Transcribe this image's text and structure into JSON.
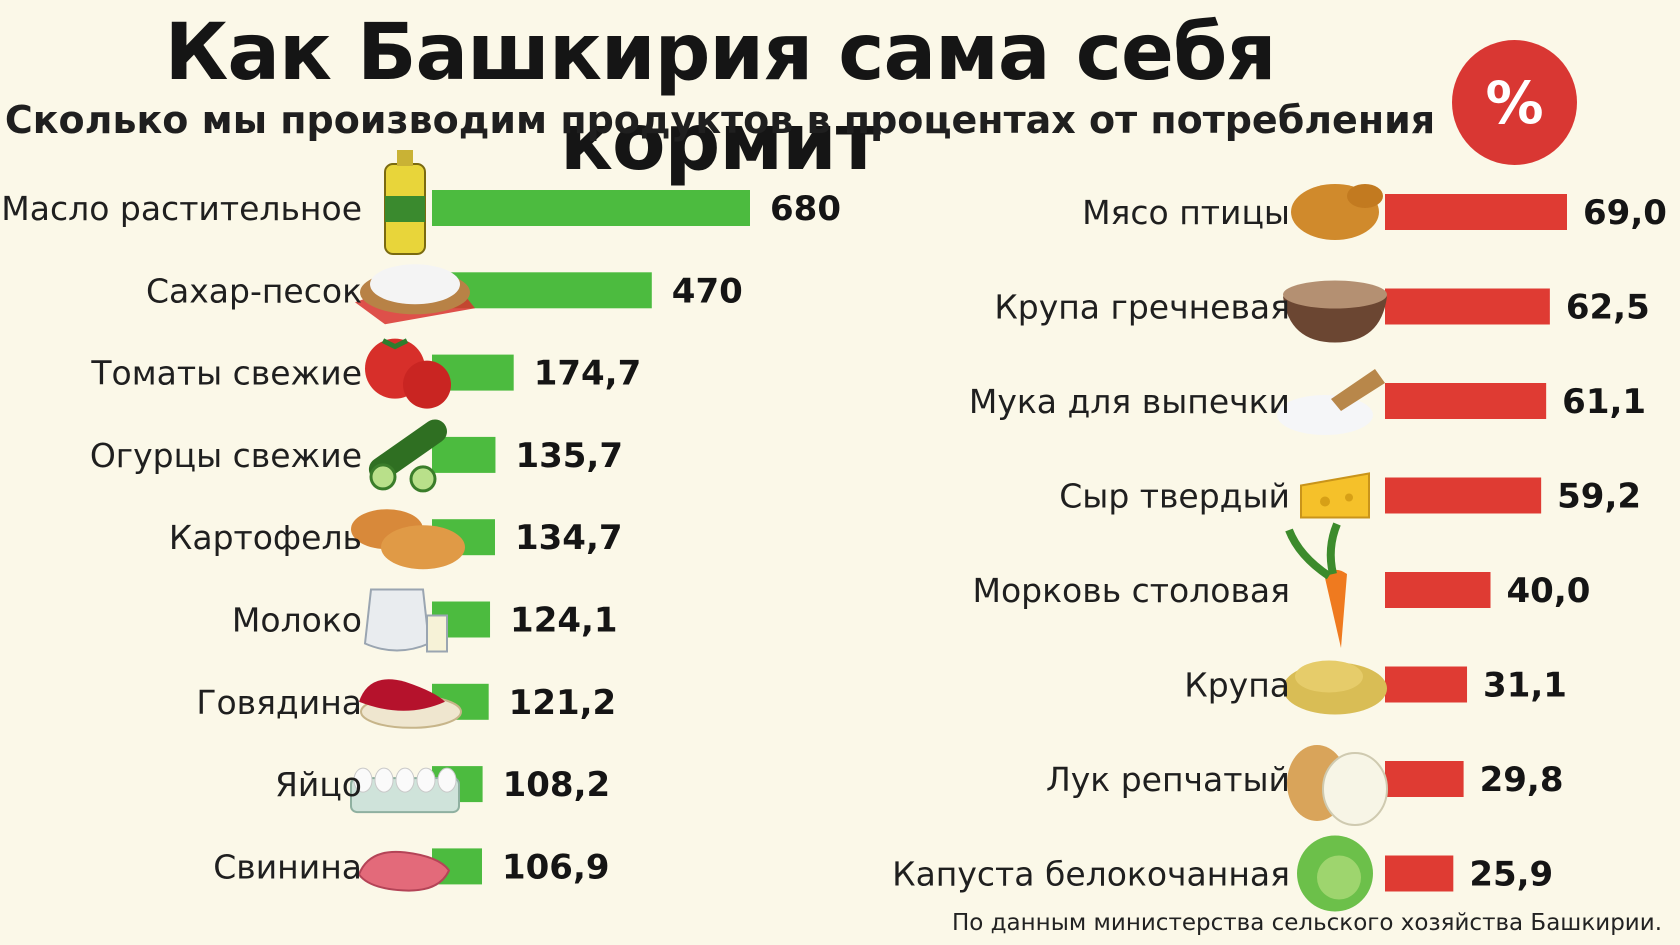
{
  "header": {
    "title": "Как Башкирия сама себя кормит",
    "subtitle": "Сколько мы производим продуктов в процентах от потребления",
    "badge": "%"
  },
  "footer": {
    "source": "По данным министерства сельского хозяйства Башкирии."
  },
  "colors": {
    "left_bar": "#4cbb3f",
    "right_bar": "#df3b33",
    "badge": "#d93733",
    "background": "#fbf8e8"
  },
  "chart_data": [
    {
      "type": "bar",
      "orientation": "horizontal",
      "categories": [
        "Масло растительное",
        "Сахар-песок",
        "Томаты свежие",
        "Огурцы свежие",
        "Картофель",
        "Молоко",
        "Говядина",
        "Яйцо",
        "Свинина"
      ],
      "values": [
        680,
        470,
        174.7,
        135.7,
        134.7,
        124.1,
        121.2,
        108.2,
        106.9
      ],
      "value_labels": [
        "680",
        "470",
        "174,7",
        "135,7",
        "134,7",
        "124,1",
        "121,2",
        "108,2",
        "106,9"
      ],
      "icons": [
        "oil-bottle-icon",
        "sugar-bowl-icon",
        "tomatoes-icon",
        "cucumbers-icon",
        "potatoes-icon",
        "milk-jug-icon",
        "beef-icon",
        "eggs-icon",
        "pork-icon"
      ],
      "color": "#4cbb3f"
    },
    {
      "type": "bar",
      "orientation": "horizontal",
      "categories": [
        "Мясо птицы",
        "Крупа гречневая",
        "Мука для выпечки",
        "Сыр твердый",
        "Морковь столовая",
        "Крупа",
        "Лук репчатый",
        "Капуста белокочанная"
      ],
      "values": [
        69.0,
        62.5,
        61.1,
        59.2,
        40.0,
        31.1,
        29.8,
        25.9
      ],
      "value_labels": [
        "69,0",
        "62,5",
        "61,1",
        "59,2",
        "40,0",
        "31,1",
        "29,8",
        "25,9"
      ],
      "icons": [
        "roast-chicken-icon",
        "buckwheat-bowl-icon",
        "flour-scoop-icon",
        "cheese-icon",
        "carrot-icon",
        "grain-pile-icon",
        "onions-icon",
        "cabbage-icon"
      ],
      "color": "#df3b33"
    }
  ]
}
